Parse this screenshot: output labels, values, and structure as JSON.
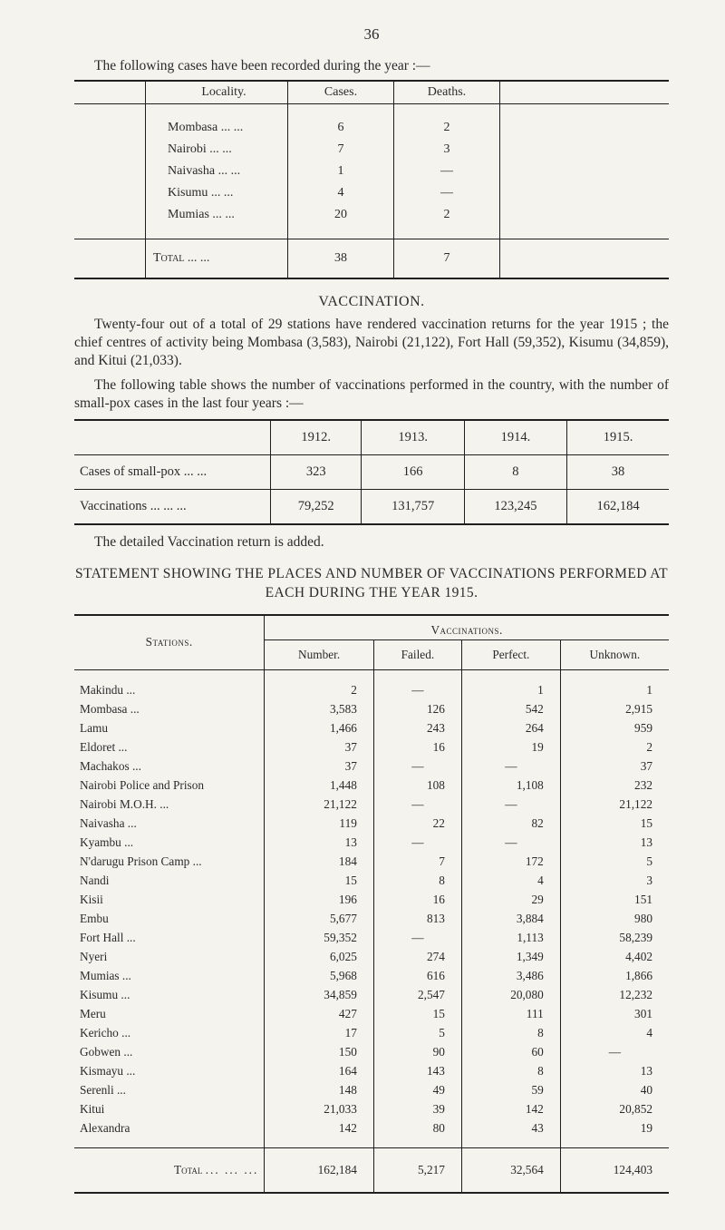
{
  "pageNumber": "36",
  "introLine": "The following cases have been recorded during the year :—",
  "table1": {
    "headers": [
      "Locality.",
      "Cases.",
      "Deaths."
    ],
    "rows": [
      [
        "Mombasa ...     ...",
        "6",
        "2"
      ],
      [
        "Nairobi     ...     ...",
        "7",
        "3"
      ],
      [
        "Naivasha ...     ...",
        "1",
        "—"
      ],
      [
        "Kisumu    ...     ...",
        "4",
        "—"
      ],
      [
        "Mumias    ...     ...",
        "20",
        "2"
      ]
    ],
    "totalLabel": "Total   ...     ...",
    "totals": [
      "38",
      "7"
    ]
  },
  "vaccinationHead": "VACCINATION.",
  "para1": "Twenty-four out of a total of 29 stations have rendered vaccination returns for the year 1915 ; the chief centres of activity being Mombasa (3,583), Nairobi (21,122), Fort Hall (59,352), Kisumu (34,859), and Kitui (21,033).",
  "para2": "The following table shows the number of vaccinations performed in the country, with the number of small-pox cases in the last four years :—",
  "table2": {
    "years": [
      "1912.",
      "1913.",
      "1914.",
      "1915."
    ],
    "row1Label": "Cases of small-pox    ...     ...",
    "row1": [
      "323",
      "166",
      "8",
      "38"
    ],
    "row2Label": "Vaccinations ...     ...     ...",
    "row2": [
      "79,252",
      "131,757",
      "123,245",
      "162,184"
    ]
  },
  "detailLine": "The detailed Vaccination return is added.",
  "stmtHead": "STATEMENT SHOWING THE PLACES AND NUMBER OF VACCINATIONS PERFORMED AT EACH DURING THE YEAR 1915.",
  "table3": {
    "stationsLabel": "Stations.",
    "vaccLabel": "Vaccinations.",
    "subheads": [
      "Number.",
      "Failed.",
      "Perfect.",
      "Unknown."
    ],
    "rows": [
      [
        "Makindu ...",
        "2",
        "—",
        "1",
        "1"
      ],
      [
        "Mombasa ...",
        "3,583",
        "126",
        "542",
        "2,915"
      ],
      [
        "Lamu",
        "1,466",
        "243",
        "264",
        "959"
      ],
      [
        "Eldoret ...",
        "37",
        "16",
        "19",
        "2"
      ],
      [
        "Machakos ...",
        "37",
        "—",
        "—",
        "37"
      ],
      [
        "Nairobi Police and Prison",
        "1,448",
        "108",
        "1,108",
        "232"
      ],
      [
        "Nairobi M.O.H. ...",
        "21,122",
        "—",
        "—",
        "21,122"
      ],
      [
        "Naivasha ...",
        "119",
        "22",
        "82",
        "15"
      ],
      [
        "Kyambu ...",
        "13",
        "—",
        "—",
        "13"
      ],
      [
        "N'darugu Prison Camp ...",
        "184",
        "7",
        "172",
        "5"
      ],
      [
        "Nandi",
        "15",
        "8",
        "4",
        "3"
      ],
      [
        "Kisii",
        "196",
        "16",
        "29",
        "151"
      ],
      [
        "Embu",
        "5,677",
        "813",
        "3,884",
        "980"
      ],
      [
        "Fort Hall ...",
        "59,352",
        "—",
        "1,113",
        "58,239"
      ],
      [
        "Nyeri",
        "6,025",
        "274",
        "1,349",
        "4,402"
      ],
      [
        "Mumias ...",
        "5,968",
        "616",
        "3,486",
        "1,866"
      ],
      [
        "Kisumu ...",
        "34,859",
        "2,547",
        "20,080",
        "12,232"
      ],
      [
        "Meru",
        "427",
        "15",
        "111",
        "301"
      ],
      [
        "Kericho ...",
        "17",
        "5",
        "8",
        "4"
      ],
      [
        "Gobwen ...",
        "150",
        "90",
        "60",
        "—"
      ],
      [
        "Kismayu ...",
        "164",
        "143",
        "8",
        "13"
      ],
      [
        "Serenli ...",
        "148",
        "49",
        "59",
        "40"
      ],
      [
        "Kitui",
        "21,033",
        "39",
        "142",
        "20,852"
      ],
      [
        "Alexandra",
        "142",
        "80",
        "43",
        "19"
      ]
    ],
    "totalLabel": "Total",
    "totals": [
      "162,184",
      "5,217",
      "32,564",
      "124,403"
    ]
  }
}
